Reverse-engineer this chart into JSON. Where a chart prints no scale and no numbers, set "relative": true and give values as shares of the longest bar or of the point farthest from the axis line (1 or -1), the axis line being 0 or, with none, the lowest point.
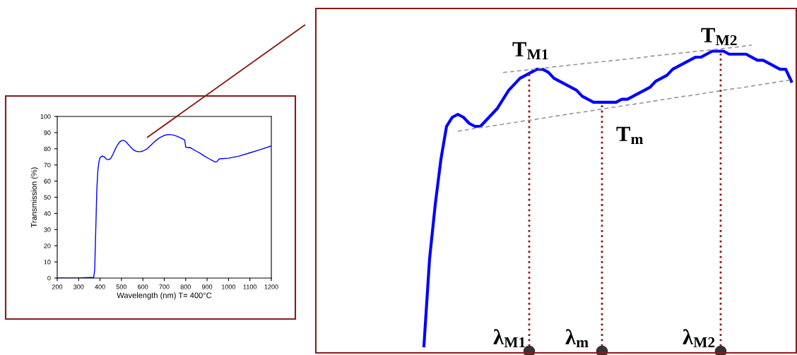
{
  "chart_data": [
    {
      "type": "line",
      "xlabel": "Wavelength (nm) T= 400°C",
      "ylabel": "Transmission (%)",
      "xlim": [
        200,
        1200
      ],
      "xticks": [
        200,
        300,
        400,
        500,
        600,
        700,
        800,
        900,
        1000,
        1100,
        1200
      ],
      "ylim": [
        0,
        100
      ],
      "yticks": [
        0,
        10,
        20,
        30,
        40,
        50,
        60,
        70,
        80,
        90,
        100
      ],
      "grid": false,
      "legend": false,
      "series": [
        {
          "color": "#0000ff",
          "x": [
            200,
            300,
            350,
            370,
            375,
            380,
            385,
            390,
            395,
            400,
            410,
            420,
            430,
            440,
            450,
            460,
            470,
            480,
            490,
            500,
            510,
            520,
            530,
            540,
            550,
            560,
            570,
            580,
            590,
            600,
            620,
            640,
            660,
            680,
            700,
            720,
            740,
            760,
            780,
            795,
            797,
            800,
            810,
            820,
            830,
            850,
            870,
            890,
            910,
            930,
            940,
            945,
            955,
            960,
            1000,
            1050,
            1100,
            1150,
            1200
          ],
          "values": [
            0,
            0,
            0.3,
            0.3,
            5,
            30,
            55,
            67,
            72,
            74.5,
            75.5,
            75,
            73.5,
            73.3,
            74,
            76.5,
            79.5,
            82,
            84,
            85,
            85.2,
            84.5,
            83,
            81.5,
            80,
            79,
            78.4,
            78.2,
            78.2,
            78.6,
            80,
            82.5,
            85,
            87,
            88.3,
            88.8,
            88.6,
            87.7,
            86.5,
            85.4,
            84,
            81,
            80.7,
            80.8,
            80,
            78.5,
            77,
            75.3,
            73.8,
            72.3,
            71.8,
            72,
            73.5,
            73.8,
            74.2,
            75.5,
            77.5,
            79.5,
            81.8
          ]
        }
      ]
    },
    {
      "type": "line",
      "relative": true,
      "grid": false,
      "legend": false,
      "categories": [
        null,
        null,
        null,
        null,
        null,
        null,
        null,
        null,
        null,
        null,
        null,
        null,
        null,
        null,
        null,
        null,
        null,
        null,
        null,
        null,
        null,
        null,
        null,
        null,
        null,
        null,
        null,
        null,
        null,
        null,
        null,
        null,
        null,
        null,
        null,
        null,
        null,
        null,
        null,
        null,
        null,
        null,
        null,
        null,
        null,
        null,
        null,
        null,
        null,
        null,
        null,
        null,
        null,
        null,
        null,
        null,
        null,
        null,
        null,
        null,
        null,
        null,
        null,
        null,
        null,
        null
      ],
      "series": [
        {
          "color": "#0000ff",
          "line_style": "solid",
          "values": [
            0,
            0.29,
            0.47,
            0.62,
            0.73,
            0.76,
            0.77,
            0.76,
            0.74,
            0.73,
            0.73,
            0.75,
            0.77,
            0.79,
            0.82,
            0.85,
            0.87,
            0.89,
            0.9,
            0.91,
            0.92,
            0.92,
            0.91,
            0.89,
            0.88,
            0.87,
            0.86,
            0.85,
            0.83,
            0.82,
            0.81,
            0.81,
            0.81,
            0.81,
            0.81,
            0.82,
            0.82,
            0.83,
            0.84,
            0.85,
            0.86,
            0.88,
            0.89,
            0.9,
            0.92,
            0.93,
            0.94,
            0.95,
            0.96,
            0.96,
            0.97,
            0.98,
            0.98,
            0.98,
            0.97,
            0.97,
            0.97,
            0.97,
            0.96,
            0.95,
            0.95,
            0.94,
            0.93,
            0.92,
            0.92,
            0.88
          ]
        },
        {
          "color": "#999999",
          "line_style": "dashed",
          "values": [
            null,
            null,
            null,
            null,
            null,
            null,
            null,
            null,
            null,
            null,
            null,
            null,
            null,
            null,
            0.909,
            0.911,
            0.913,
            0.915,
            0.917,
            0.919,
            0.921,
            0.923,
            0.925,
            0.928,
            0.93,
            0.932,
            0.934,
            0.936,
            0.938,
            0.94,
            0.942,
            0.944,
            0.946,
            0.948,
            0.95,
            0.952,
            0.954,
            0.956,
            0.958,
            0.96,
            0.963,
            0.965,
            0.967,
            0.969,
            0.971,
            0.973,
            0.975,
            0.977,
            0.979,
            0.981,
            0.983,
            0.985,
            0.987,
            0.989,
            0.991,
            0.993,
            0.995,
            0.998,
            1.0,
            null,
            null,
            null,
            null,
            null,
            null,
            null
          ]
        },
        {
          "color": "#999999",
          "line_style": "dashed",
          "values": [
            null,
            null,
            null,
            null,
            null,
            null,
            0.714,
            0.717,
            0.72,
            0.723,
            0.726,
            0.728,
            0.731,
            0.734,
            0.737,
            0.74,
            0.743,
            0.746,
            0.749,
            0.751,
            0.754,
            0.757,
            0.76,
            0.763,
            0.766,
            0.769,
            0.772,
            0.775,
            0.777,
            0.78,
            0.783,
            0.786,
            0.789,
            0.792,
            0.795,
            0.798,
            0.801,
            0.803,
            0.806,
            0.809,
            0.812,
            0.815,
            0.818,
            0.821,
            0.824,
            0.827,
            0.83,
            0.832,
            0.835,
            0.838,
            0.841,
            0.844,
            0.847,
            0.85,
            0.853,
            0.856,
            0.858,
            0.861,
            0.864,
            0.867,
            0.87,
            0.873,
            0.876,
            0.879,
            0.882,
            0.884
          ]
        }
      ],
      "annotations": [
        "T$_{M1}$",
        "T$_{M2}$",
        "T$_{m}$",
        "λ$_{M1}$",
        "λ$_{m}$",
        "λ$_{M2}$"
      ]
    }
  ]
}
